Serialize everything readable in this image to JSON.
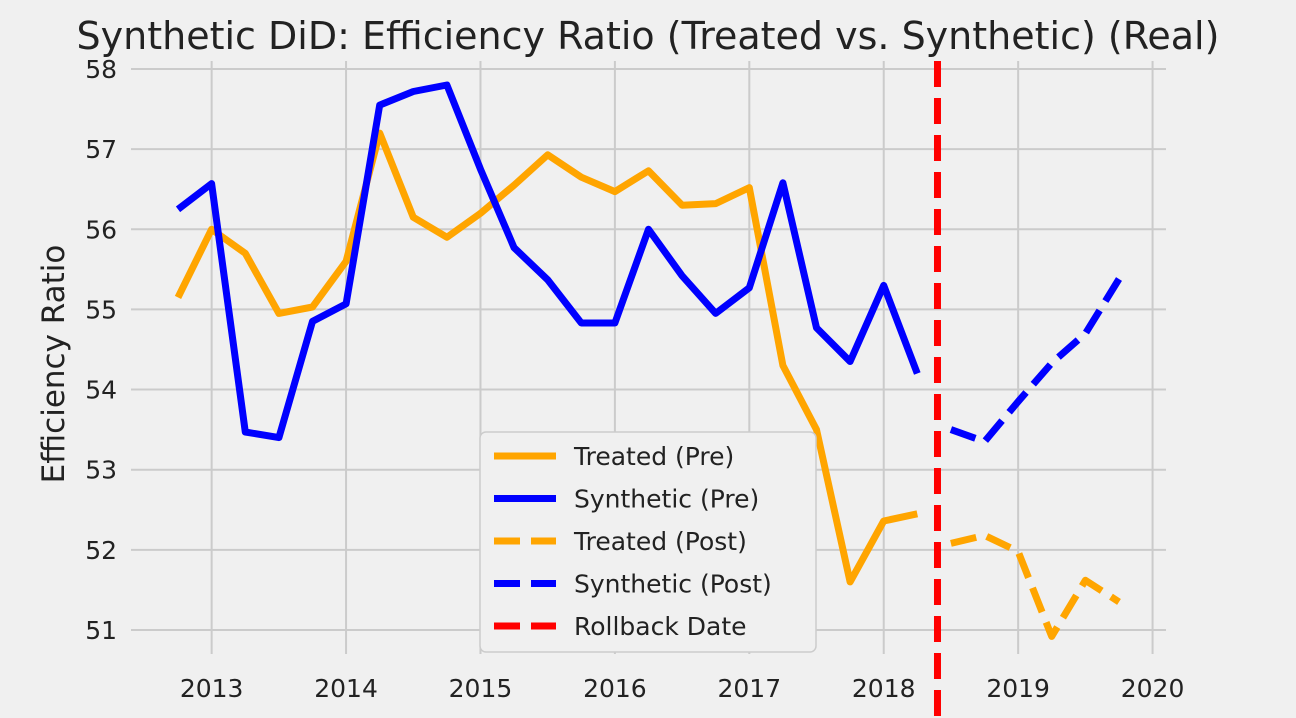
{
  "chart_data": {
    "type": "line",
    "title": "Synthetic DiD: Efficiency Ratio (Treated vs. Synthetic) (Real)",
    "xlabel": "",
    "ylabel": "Efficiency Ratio",
    "xlim": [
      2012.4,
      2020.1
    ],
    "ylim": [
      50.7,
      58.1
    ],
    "xticks": [
      2013,
      2014,
      2015,
      2016,
      2017,
      2018,
      2019,
      2020
    ],
    "yticks": [
      51,
      52,
      53,
      54,
      55,
      56,
      57,
      58
    ],
    "grid": true,
    "legend_position": "lower-center",
    "vline": {
      "name": "Rollback Date",
      "x": 2018.4,
      "color": "#ff0000",
      "style": "dashed"
    },
    "series": [
      {
        "name": "Treated (Pre)",
        "color": "#ffa500",
        "style": "solid",
        "x": [
          2012.75,
          2013.0,
          2013.25,
          2013.5,
          2013.75,
          2014.0,
          2014.25,
          2014.5,
          2014.75,
          2015.0,
          2015.25,
          2015.5,
          2015.75,
          2016.0,
          2016.25,
          2016.5,
          2016.75,
          2017.0,
          2017.25,
          2017.5,
          2017.75,
          2018.0,
          2018.25
        ],
        "y": [
          55.15,
          56.0,
          55.7,
          54.95,
          55.03,
          55.6,
          57.2,
          56.15,
          55.9,
          56.2,
          56.55,
          56.93,
          56.65,
          56.47,
          56.73,
          56.3,
          56.32,
          56.52,
          54.3,
          53.5,
          51.6,
          52.36,
          52.45
        ]
      },
      {
        "name": "Synthetic (Pre)",
        "color": "#0000ff",
        "style": "solid",
        "x": [
          2012.75,
          2013.0,
          2013.25,
          2013.5,
          2013.75,
          2014.0,
          2014.25,
          2014.5,
          2014.75,
          2015.0,
          2015.25,
          2015.5,
          2015.75,
          2016.0,
          2016.25,
          2016.5,
          2016.75,
          2017.0,
          2017.25,
          2017.5,
          2017.75,
          2018.0,
          2018.25
        ],
        "y": [
          56.25,
          56.57,
          53.47,
          53.4,
          54.85,
          55.07,
          57.55,
          57.72,
          57.8,
          56.75,
          55.77,
          55.37,
          54.83,
          54.83,
          56.0,
          55.42,
          54.95,
          55.27,
          56.58,
          54.77,
          54.35,
          55.3,
          54.2
        ]
      },
      {
        "name": "Treated (Post)",
        "color": "#ffa500",
        "style": "dashed",
        "x": [
          2018.5,
          2018.75,
          2019.0,
          2019.25,
          2019.5,
          2019.75
        ],
        "y": [
          52.08,
          52.18,
          51.98,
          50.92,
          51.62,
          51.35
        ]
      },
      {
        "name": "Synthetic (Post)",
        "color": "#0000ff",
        "style": "dashed",
        "x": [
          2018.5,
          2018.75,
          2019.0,
          2019.25,
          2019.5,
          2019.75
        ],
        "y": [
          53.5,
          53.35,
          53.85,
          54.33,
          54.7,
          55.38
        ]
      }
    ],
    "legend": [
      "Treated (Pre)",
      "Synthetic (Pre)",
      "Treated (Post)",
      "Synthetic (Post)",
      "Rollback Date"
    ]
  }
}
